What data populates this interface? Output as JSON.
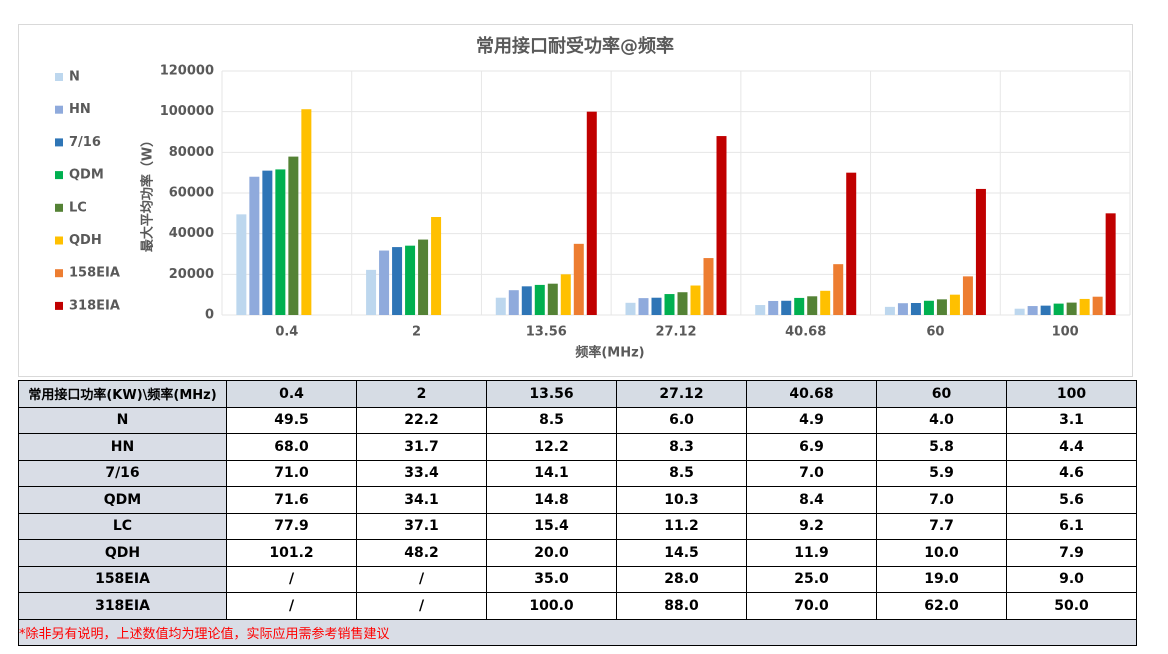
{
  "chart_data": {
    "type": "bar",
    "title": "常用接口耐受功率@频率",
    "x_label": "频率(MHz)",
    "y_label": "最大平均功率（W）",
    "categories": [
      "0.4",
      "2",
      "13.56",
      "27.12",
      "40.68",
      "60",
      "100"
    ],
    "series": [
      {
        "name": "N",
        "color": "#bdd7ee",
        "values": [
          49500,
          22200,
          8500,
          6000,
          4900,
          4000,
          3100
        ]
      },
      {
        "name": "HN",
        "color": "#8faadc",
        "values": [
          68000,
          31700,
          12200,
          8300,
          6900,
          5800,
          4400
        ]
      },
      {
        "name": "7/16",
        "color": "#2e75b6",
        "values": [
          71000,
          33400,
          14100,
          8500,
          7000,
          5900,
          4600
        ]
      },
      {
        "name": "QDM",
        "color": "#00b050",
        "values": [
          71600,
          34100,
          14800,
          10300,
          8400,
          7000,
          5600
        ]
      },
      {
        "name": "LC",
        "color": "#548235",
        "values": [
          77900,
          37100,
          15400,
          11200,
          9200,
          7700,
          6100
        ]
      },
      {
        "name": "QDH",
        "color": "#ffc000",
        "values": [
          101200,
          48200,
          20000,
          14500,
          11900,
          10000,
          7900
        ]
      },
      {
        "name": "158EIA",
        "color": "#ed7d31",
        "values": [
          null,
          null,
          35000,
          28000,
          25000,
          19000,
          9000
        ]
      },
      {
        "name": "318EIA",
        "color": "#c00000",
        "values": [
          null,
          null,
          100000,
          88000,
          70000,
          62000,
          50000
        ]
      }
    ],
    "ylim": [
      0,
      120000
    ],
    "yticks": [
      0,
      20000,
      40000,
      60000,
      80000,
      100000,
      120000
    ],
    "grid": true,
    "legend": "left"
  },
  "table": {
    "header": [
      "常用接口功率(KW)\\频率(MHz)",
      "0.4",
      "2",
      "13.56",
      "27.12",
      "40.68",
      "60",
      "100"
    ],
    "rows": [
      [
        "N",
        "49.5",
        "22.2",
        "8.5",
        "6.0",
        "4.9",
        "4.0",
        "3.1"
      ],
      [
        "HN",
        "68.0",
        "31.7",
        "12.2",
        "8.3",
        "6.9",
        "5.8",
        "4.4"
      ],
      [
        "7/16",
        "71.0",
        "33.4",
        "14.1",
        "8.5",
        "7.0",
        "5.9",
        "4.6"
      ],
      [
        "QDM",
        "71.6",
        "34.1",
        "14.8",
        "10.3",
        "8.4",
        "7.0",
        "5.6"
      ],
      [
        "LC",
        "77.9",
        "37.1",
        "15.4",
        "11.2",
        "9.2",
        "7.7",
        "6.1"
      ],
      [
        "QDH",
        "101.2",
        "48.2",
        "20.0",
        "14.5",
        "11.9",
        "10.0",
        "7.9"
      ],
      [
        "158EIA",
        "/",
        "/",
        "35.0",
        "28.0",
        "25.0",
        "19.0",
        "9.0"
      ],
      [
        "318EIA",
        "/",
        "/",
        "100.0",
        "88.0",
        "70.0",
        "62.0",
        "50.0"
      ]
    ],
    "note": "*除非另有说明，上述数值均为理论值，实际应用需参考销售建议"
  }
}
